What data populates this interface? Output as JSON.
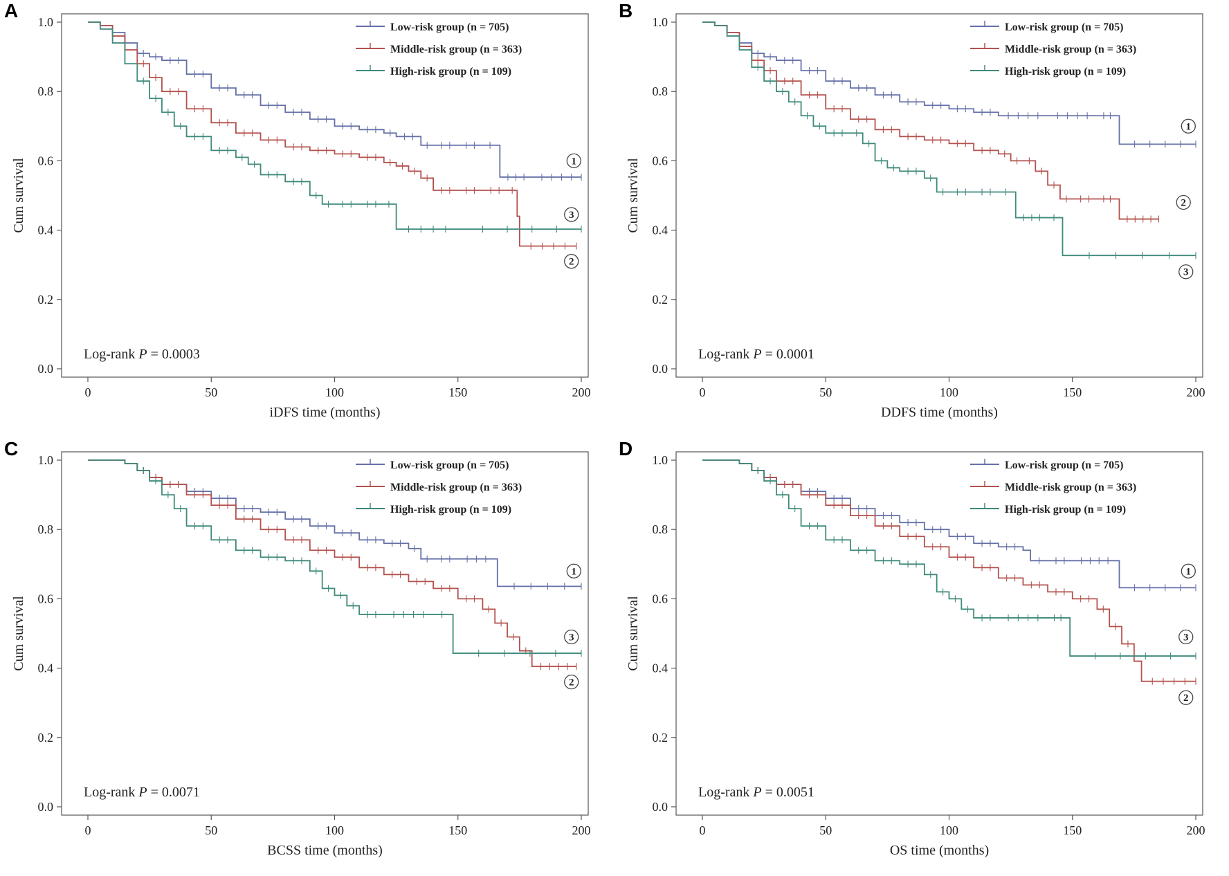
{
  "colors": {
    "low": "#6670a8",
    "middle": "#b3524e",
    "high": "#3f8a7b"
  },
  "chart_data": [
    {
      "panel": "A",
      "type": "line",
      "xlabel": "iDFS time (months)",
      "ylabel": "Cum survival",
      "xlim": [
        0,
        200
      ],
      "ylim": [
        0,
        1.0
      ],
      "xticks": [
        "0",
        "50",
        "100",
        "150",
        "200"
      ],
      "yticks": [
        "0.0",
        "0.2",
        "0.4",
        "0.6",
        "0.8",
        "1.0"
      ],
      "legend": [
        "Low-risk group (n = 705)",
        "Middle-risk group (n = 363)",
        "High-risk group (n = 109)"
      ],
      "annotation": {
        "prefix": "Log-rank ",
        "p": "P",
        "value": " = 0.0003"
      },
      "curve_labels": [
        {
          "label": "①",
          "x": 197,
          "y": 0.6
        },
        {
          "label": "③",
          "x": 196,
          "y": 0.445
        },
        {
          "label": "②",
          "x": 196,
          "y": 0.31
        }
      ],
      "series": [
        {
          "name": "Low-risk group",
          "color_key": "low",
          "x": [
            0,
            5,
            10,
            15,
            20,
            25,
            30,
            40,
            50,
            60,
            70,
            80,
            90,
            100,
            110,
            120,
            125,
            135,
            140,
            150,
            160,
            166,
            167,
            180,
            200
          ],
          "y": [
            1.0,
            0.99,
            0.97,
            0.94,
            0.91,
            0.9,
            0.89,
            0.85,
            0.81,
            0.79,
            0.76,
            0.74,
            0.72,
            0.7,
            0.69,
            0.68,
            0.67,
            0.645,
            0.645,
            0.645,
            0.645,
            0.645,
            0.553,
            0.553,
            0.553
          ]
        },
        {
          "name": "Middle-risk group",
          "color_key": "middle",
          "x": [
            0,
            5,
            10,
            15,
            20,
            25,
            30,
            40,
            50,
            60,
            70,
            80,
            90,
            100,
            110,
            120,
            125,
            130,
            135,
            140,
            150,
            160,
            170,
            174,
            175,
            198
          ],
          "y": [
            1.0,
            0.99,
            0.96,
            0.92,
            0.88,
            0.84,
            0.8,
            0.75,
            0.71,
            0.68,
            0.66,
            0.64,
            0.63,
            0.62,
            0.61,
            0.595,
            0.585,
            0.57,
            0.55,
            0.515,
            0.515,
            0.515,
            0.515,
            0.44,
            0.354,
            0.354
          ]
        },
        {
          "name": "High-risk group",
          "color_key": "high",
          "x": [
            0,
            5,
            10,
            15,
            20,
            25,
            30,
            35,
            40,
            50,
            60,
            65,
            70,
            80,
            90,
            95,
            100,
            110,
            120,
            124,
            125,
            150,
            200
          ],
          "y": [
            1.0,
            0.98,
            0.94,
            0.88,
            0.83,
            0.78,
            0.74,
            0.7,
            0.67,
            0.63,
            0.61,
            0.59,
            0.56,
            0.54,
            0.5,
            0.475,
            0.475,
            0.475,
            0.475,
            0.475,
            0.403,
            0.403,
            0.403
          ]
        }
      ]
    },
    {
      "panel": "B",
      "type": "line",
      "xlabel": "DDFS time (months)",
      "ylabel": "Cum survival",
      "xlim": [
        0,
        200
      ],
      "ylim": [
        0,
        1.0
      ],
      "xticks": [
        "0",
        "50",
        "100",
        "150",
        "200"
      ],
      "yticks": [
        "0.0",
        "0.2",
        "0.4",
        "0.6",
        "0.8",
        "1.0"
      ],
      "legend": [
        "Low-risk group (n = 705)",
        "Middle-risk group (n = 363)",
        "High-risk group (n = 109)"
      ],
      "annotation": {
        "prefix": "Log-rank ",
        "p": "P",
        "value": " = 0.0001"
      },
      "curve_labels": [
        {
          "label": "①",
          "x": 197,
          "y": 0.7
        },
        {
          "label": "②",
          "x": 195,
          "y": 0.48
        },
        {
          "label": "③",
          "x": 196,
          "y": 0.28
        }
      ],
      "series": [
        {
          "name": "Low-risk group",
          "color_key": "low",
          "x": [
            0,
            5,
            10,
            15,
            20,
            25,
            30,
            40,
            50,
            60,
            70,
            80,
            90,
            100,
            110,
            120,
            140,
            160,
            168,
            169,
            200
          ],
          "y": [
            1.0,
            0.99,
            0.97,
            0.94,
            0.91,
            0.9,
            0.89,
            0.86,
            0.83,
            0.81,
            0.79,
            0.77,
            0.76,
            0.75,
            0.74,
            0.73,
            0.73,
            0.73,
            0.73,
            0.648,
            0.648
          ]
        },
        {
          "name": "Middle-risk group",
          "color_key": "middle",
          "x": [
            0,
            5,
            10,
            15,
            20,
            25,
            30,
            40,
            50,
            60,
            70,
            80,
            90,
            100,
            110,
            120,
            125,
            130,
            135,
            140,
            145,
            150,
            160,
            168,
            169,
            185
          ],
          "y": [
            1.0,
            0.99,
            0.97,
            0.93,
            0.89,
            0.86,
            0.83,
            0.79,
            0.75,
            0.72,
            0.69,
            0.67,
            0.66,
            0.65,
            0.63,
            0.62,
            0.6,
            0.6,
            0.57,
            0.53,
            0.49,
            0.49,
            0.49,
            0.49,
            0.432,
            0.432
          ]
        },
        {
          "name": "High-risk group",
          "color_key": "high",
          "x": [
            0,
            5,
            10,
            15,
            20,
            25,
            30,
            35,
            40,
            45,
            50,
            60,
            65,
            70,
            75,
            80,
            90,
            95,
            100,
            110,
            120,
            126,
            127,
            140,
            145,
            146,
            200
          ],
          "y": [
            1.0,
            0.99,
            0.96,
            0.92,
            0.87,
            0.83,
            0.8,
            0.77,
            0.73,
            0.7,
            0.68,
            0.68,
            0.65,
            0.6,
            0.58,
            0.57,
            0.55,
            0.51,
            0.51,
            0.51,
            0.51,
            0.51,
            0.436,
            0.436,
            0.436,
            0.327,
            0.327
          ]
        }
      ]
    },
    {
      "panel": "C",
      "type": "line",
      "xlabel": "BCSS time (months)",
      "ylabel": "Cum survival",
      "xlim": [
        0,
        200
      ],
      "ylim": [
        0,
        1.0
      ],
      "xticks": [
        "0",
        "50",
        "100",
        "150",
        "200"
      ],
      "yticks": [
        "0.0",
        "0.2",
        "0.4",
        "0.6",
        "0.8",
        "1.0"
      ],
      "legend": [
        "Low-risk group (n = 705)",
        "Middle-risk group (n = 363)",
        "High-risk group (n = 109)"
      ],
      "annotation": {
        "prefix": "Log-rank ",
        "p": "P",
        "value": " = 0.0071"
      },
      "curve_labels": [
        {
          "label": "①",
          "x": 197,
          "y": 0.68
        },
        {
          "label": "③",
          "x": 196,
          "y": 0.49
        },
        {
          "label": "②",
          "x": 196,
          "y": 0.36
        }
      ],
      "series": [
        {
          "name": "Low-risk group",
          "color_key": "low",
          "x": [
            0,
            10,
            15,
            20,
            25,
            30,
            40,
            50,
            60,
            70,
            80,
            90,
            100,
            110,
            120,
            130,
            135,
            140,
            150,
            165,
            166,
            200
          ],
          "y": [
            1.0,
            1.0,
            0.99,
            0.97,
            0.95,
            0.93,
            0.91,
            0.89,
            0.86,
            0.85,
            0.83,
            0.81,
            0.79,
            0.77,
            0.76,
            0.745,
            0.715,
            0.715,
            0.715,
            0.715,
            0.636,
            0.636
          ]
        },
        {
          "name": "Middle-risk group",
          "color_key": "middle",
          "x": [
            0,
            10,
            15,
            20,
            25,
            30,
            40,
            50,
            60,
            70,
            80,
            90,
            100,
            110,
            120,
            130,
            140,
            150,
            160,
            165,
            170,
            175,
            180,
            198
          ],
          "y": [
            1.0,
            1.0,
            0.99,
            0.97,
            0.95,
            0.93,
            0.9,
            0.87,
            0.83,
            0.8,
            0.77,
            0.74,
            0.72,
            0.69,
            0.67,
            0.65,
            0.63,
            0.6,
            0.57,
            0.53,
            0.49,
            0.45,
            0.405,
            0.405
          ]
        },
        {
          "name": "High-risk group",
          "color_key": "high",
          "x": [
            0,
            10,
            15,
            20,
            25,
            30,
            35,
            40,
            50,
            60,
            70,
            80,
            90,
            95,
            100,
            105,
            110,
            120,
            140,
            147,
            148,
            200
          ],
          "y": [
            1.0,
            1.0,
            0.99,
            0.97,
            0.94,
            0.9,
            0.86,
            0.81,
            0.77,
            0.74,
            0.72,
            0.71,
            0.68,
            0.63,
            0.61,
            0.58,
            0.555,
            0.555,
            0.555,
            0.555,
            0.443,
            0.443
          ]
        }
      ]
    },
    {
      "panel": "D",
      "type": "line",
      "xlabel": "OS time (months)",
      "ylabel": "Cum survival",
      "xlim": [
        0,
        200
      ],
      "ylim": [
        0,
        1.0
      ],
      "xticks": [
        "0",
        "50",
        "100",
        "150",
        "200"
      ],
      "yticks": [
        "0.0",
        "0.2",
        "0.4",
        "0.6",
        "0.8",
        "1.0"
      ],
      "legend": [
        "Low-risk group (n = 705)",
        "Middle-risk group (n = 363)",
        "High-risk group (n = 109)"
      ],
      "annotation": {
        "prefix": "Log-rank ",
        "p": "P",
        "value": " = 0.0051"
      },
      "curve_labels": [
        {
          "label": "①",
          "x": 197,
          "y": 0.68
        },
        {
          "label": "③",
          "x": 196,
          "y": 0.49
        },
        {
          "label": "②",
          "x": 196,
          "y": 0.315
        }
      ],
      "series": [
        {
          "name": "Low-risk group",
          "color_key": "low",
          "x": [
            0,
            10,
            15,
            20,
            25,
            30,
            40,
            50,
            60,
            70,
            80,
            90,
            100,
            110,
            120,
            130,
            133,
            140,
            150,
            168,
            169,
            200
          ],
          "y": [
            1.0,
            1.0,
            0.99,
            0.97,
            0.95,
            0.93,
            0.91,
            0.89,
            0.86,
            0.84,
            0.82,
            0.8,
            0.78,
            0.76,
            0.75,
            0.74,
            0.71,
            0.71,
            0.71,
            0.71,
            0.632,
            0.632
          ]
        },
        {
          "name": "Middle-risk group",
          "color_key": "middle",
          "x": [
            0,
            10,
            15,
            20,
            25,
            30,
            40,
            50,
            60,
            70,
            80,
            90,
            100,
            110,
            120,
            130,
            140,
            150,
            160,
            165,
            170,
            175,
            178,
            200
          ],
          "y": [
            1.0,
            1.0,
            0.99,
            0.97,
            0.95,
            0.93,
            0.9,
            0.87,
            0.84,
            0.81,
            0.78,
            0.75,
            0.72,
            0.69,
            0.66,
            0.64,
            0.62,
            0.6,
            0.57,
            0.52,
            0.47,
            0.42,
            0.362,
            0.362
          ]
        },
        {
          "name": "High-risk group",
          "color_key": "high",
          "x": [
            0,
            10,
            15,
            20,
            25,
            30,
            35,
            40,
            50,
            60,
            70,
            80,
            90,
            95,
            100,
            105,
            110,
            120,
            140,
            148,
            149,
            200
          ],
          "y": [
            1.0,
            1.0,
            0.99,
            0.97,
            0.94,
            0.9,
            0.86,
            0.81,
            0.77,
            0.74,
            0.71,
            0.7,
            0.67,
            0.62,
            0.6,
            0.57,
            0.545,
            0.545,
            0.545,
            0.545,
            0.435,
            0.435
          ]
        }
      ]
    }
  ]
}
